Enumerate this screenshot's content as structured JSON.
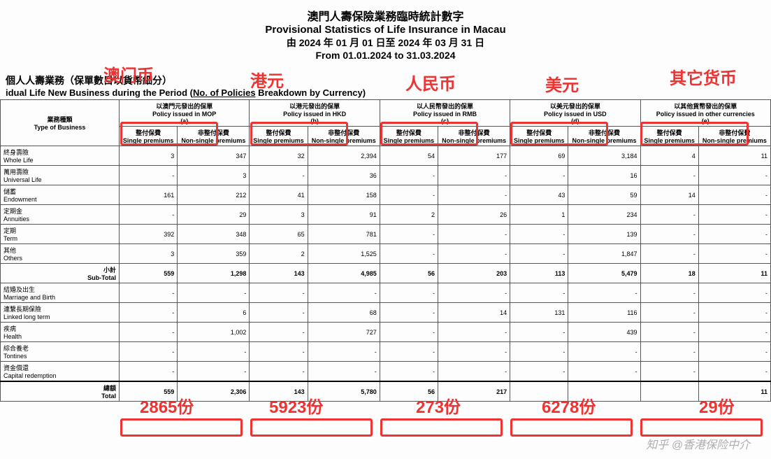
{
  "header": {
    "cn_title": "澳門人壽保險業務臨時統計數字",
    "en_title": "Provisional Statistics of Life Insurance in Macau",
    "cn_period": "由 2024 年 01 月 01 日至 2024 年 03 月 31 日",
    "en_period": "From 01.01.2024 to 31.03.2024"
  },
  "subheader": {
    "cn": "個人人壽業務（保單數目以貨幣細分）",
    "en_a": "idual Life New Business during the Period (",
    "en_u": "No. of Policies",
    "en_b": " Breakdown by Currency)"
  },
  "colgroup_label": {
    "cn": "業務種類",
    "en": "Type of Business"
  },
  "currency_headers": [
    {
      "cn": "以澳門元發出的保單",
      "en": "Policy issued in MOP",
      "sub": "(a)"
    },
    {
      "cn": "以港元發出的保單",
      "en": "Policy issued in HKD",
      "sub": "(b)"
    },
    {
      "cn": "以人民幣發出的保單",
      "en": "Policy issued in RMB",
      "sub": "(c)"
    },
    {
      "cn": "以美元發出的保單",
      "en": "Policy issued in USD",
      "sub": "(d)"
    },
    {
      "cn": "以其他貨幣發出的保單",
      "en": "Policy issued in other currencies",
      "sub": "(e)"
    }
  ],
  "col_sub": {
    "sp_cn": "整付保費",
    "sp_en": "Single premiums",
    "np_cn": "非整付保費",
    "np_en": "Non-single premiums"
  },
  "rows": [
    {
      "cn": "終身壽險",
      "en": "Whole Life",
      "v": [
        "3",
        "347",
        "32",
        "2,394",
        "54",
        "177",
        "69",
        "3,184",
        "4",
        "11"
      ]
    },
    {
      "cn": "萬用壽險",
      "en": "Universal Life",
      "v": [
        "-",
        "3",
        "-",
        "36",
        "-",
        "-",
        "-",
        "16",
        "-",
        "-"
      ]
    },
    {
      "cn": "儲蓄",
      "en": "Endowment",
      "v": [
        "161",
        "212",
        "41",
        "158",
        "-",
        "-",
        "43",
        "59",
        "14",
        "-"
      ]
    },
    {
      "cn": "定期金",
      "en": "Annuities",
      "v": [
        "-",
        "29",
        "3",
        "91",
        "2",
        "26",
        "1",
        "234",
        "-",
        "-"
      ]
    },
    {
      "cn": "定期",
      "en": "Term",
      "v": [
        "392",
        "348",
        "65",
        "781",
        "-",
        "-",
        "-",
        "139",
        "-",
        "-"
      ]
    },
    {
      "cn": "其他",
      "en": "Others",
      "v": [
        "3",
        "359",
        "2",
        "1,525",
        "-",
        "-",
        "-",
        "1,847",
        "-",
        "-"
      ]
    }
  ],
  "subtotal": {
    "cn": "小計",
    "en": "Sub-Total",
    "v": [
      "559",
      "1,298",
      "143",
      "4,985",
      "56",
      "203",
      "113",
      "5,479",
      "18",
      "11"
    ]
  },
  "rows2": [
    {
      "cn": "結婚及出生",
      "en": "Marriage and Birth",
      "v": [
        "-",
        "-",
        "-",
        "-",
        "-",
        "-",
        "-",
        "-",
        "-",
        "-"
      ]
    },
    {
      "cn": "連繫長期保險",
      "en": "Linked long term",
      "v": [
        "-",
        "6",
        "-",
        "68",
        "-",
        "14",
        "131",
        "116",
        "-",
        "-"
      ]
    },
    {
      "cn": "疾病",
      "en": "Health",
      "v": [
        "-",
        "1,002",
        "-",
        "727",
        "-",
        "-",
        "-",
        "439",
        "-",
        "-"
      ]
    },
    {
      "cn": "綜合養老",
      "en": "Tontines",
      "v": [
        "-",
        "-",
        "-",
        "-",
        "-",
        "-",
        "-",
        "-",
        "-",
        "-"
      ]
    },
    {
      "cn": "資金償還",
      "en": "Capital redemption",
      "v": [
        "-",
        "-",
        "-",
        "-",
        "-",
        "-",
        "-",
        "-",
        "-",
        "-"
      ]
    }
  ],
  "total": {
    "cn": "總額",
    "en": "Total",
    "v": [
      "559",
      "2,306",
      "143",
      "5,780",
      "56",
      "217",
      "",
      "",
      "",
      "11"
    ]
  },
  "annotations": {
    "a_mop": "澳门币",
    "a_hkd": "港元",
    "a_rmb": "人民币",
    "a_usd": "美元",
    "a_oth": "其它货币",
    "n_mop": "2865份",
    "n_hkd": "5923份",
    "n_rmb": "273份",
    "n_usd": "6278份",
    "n_oth": "29份"
  },
  "watermark": "知乎 @香港保险中介",
  "colors": {
    "red": "#e33",
    "border": "#555"
  }
}
